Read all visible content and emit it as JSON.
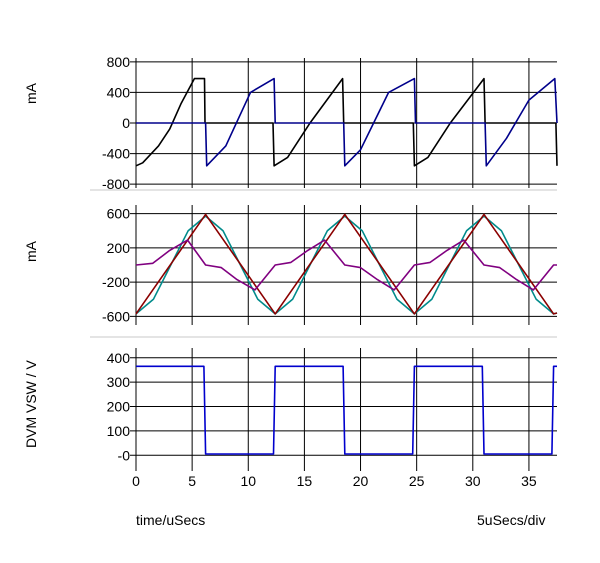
{
  "chart_data": [
    {
      "type": "line",
      "ylabel": "mA",
      "ylim": [
        -850,
        850
      ],
      "yticks": [
        800,
        400,
        0,
        -400,
        -800
      ],
      "ytick_labels": [
        "800",
        "400",
        "0",
        "-400",
        "-800"
      ],
      "grid": true,
      "series": [
        {
          "color": "#000000",
          "x": [
            0,
            0.6,
            2,
            3,
            4,
            5.2,
            6.1,
            6.15,
            9,
            12.2,
            12.3,
            13.5,
            15.5,
            18.4,
            18.5,
            21.5,
            24.7,
            24.8,
            26,
            28,
            31,
            31.1,
            34,
            37.3,
            37.4,
            37.5
          ],
          "y": [
            -560,
            -520,
            -300,
            -80,
            250,
            580,
            580,
            0,
            0,
            0,
            -560,
            -450,
            0,
            580,
            0,
            0,
            0,
            -560,
            -450,
            0,
            580,
            0,
            0,
            0,
            0,
            -560
          ]
        },
        {
          "color": "#00008b",
          "x": [
            0,
            6.2,
            6.3,
            8,
            10.2,
            12.3,
            12.4,
            18.5,
            18.6,
            20,
            22.5,
            24.8,
            24.9,
            31.1,
            31.2,
            33,
            35,
            37.3,
            37.5
          ],
          "y": [
            0,
            0,
            -560,
            -300,
            400,
            580,
            0,
            0,
            -560,
            -350,
            400,
            580,
            0,
            0,
            -560,
            -200,
            300,
            580,
            0
          ]
        }
      ]
    },
    {
      "type": "line",
      "ylabel": "mA",
      "ylim": [
        -700,
        700
      ],
      "yticks": [
        600,
        200,
        -200,
        -600
      ],
      "ytick_labels": [
        "600",
        "200",
        "-200",
        "-600"
      ],
      "grid": true,
      "series": [
        {
          "color": "#008b8b",
          "x": [
            0,
            1.55,
            3.1,
            4.65,
            6.2,
            7.75,
            9.3,
            10.85,
            12.4,
            13.95,
            15.5,
            17.05,
            18.6,
            20.15,
            21.7,
            23.25,
            24.8,
            26.35,
            27.9,
            29.45,
            31.0,
            32.55,
            34.1,
            35.65,
            37.2,
            37.5
          ],
          "y": [
            -570,
            -400,
            0,
            400,
            570,
            400,
            0,
            -400,
            -570,
            -400,
            0,
            400,
            570,
            400,
            0,
            -400,
            -570,
            -400,
            0,
            400,
            570,
            400,
            0,
            -400,
            -570,
            -560
          ]
        },
        {
          "color": "#8b0000",
          "x": [
            0,
            6.2,
            12.4,
            18.6,
            24.8,
            31.0,
            37.2,
            37.5
          ],
          "y": [
            -570,
            590,
            -570,
            590,
            -570,
            590,
            -570,
            -560
          ]
        },
        {
          "color": "#800080",
          "x": [
            0,
            1.5,
            3,
            4.6,
            6.2,
            7.6,
            9,
            10.6,
            12.4,
            13.8,
            15.3,
            16.8,
            18.6,
            20,
            21.5,
            23,
            24.8,
            26.2,
            27.7,
            29.2,
            31.0,
            32.4,
            33.9,
            35.4,
            37.2,
            37.5
          ],
          "y": [
            0,
            20,
            170,
            290,
            0,
            -30,
            -170,
            -290,
            0,
            30,
            170,
            290,
            0,
            -30,
            -170,
            -290,
            0,
            30,
            170,
            290,
            0,
            -30,
            -170,
            -290,
            0,
            0
          ]
        }
      ]
    },
    {
      "type": "line",
      "ylabel": "DVM VSW / V",
      "xlabel": "time/uSecs",
      "x_scale_note": "5uSecs/div",
      "xlim": [
        0,
        37.5
      ],
      "xticks": [
        0,
        5,
        10,
        15,
        20,
        25,
        30,
        35
      ],
      "xtick_labels": [
        "0",
        "5",
        "10",
        "15",
        "20",
        "25",
        "30",
        "35"
      ],
      "ylim": [
        -40,
        440
      ],
      "yticks": [
        400,
        300,
        200,
        100,
        0
      ],
      "ytick_labels": [
        "400",
        "300",
        "200",
        "100",
        "-0"
      ],
      "grid": true,
      "series": [
        {
          "color": "#0000cd",
          "x": [
            0,
            6.05,
            6.2,
            12.25,
            12.4,
            18.45,
            18.6,
            24.65,
            24.8,
            30.85,
            31.0,
            37.05,
            37.2,
            37.5
          ],
          "y": [
            365,
            365,
            5,
            5,
            365,
            365,
            5,
            5,
            365,
            365,
            5,
            5,
            365,
            365
          ]
        }
      ]
    }
  ]
}
